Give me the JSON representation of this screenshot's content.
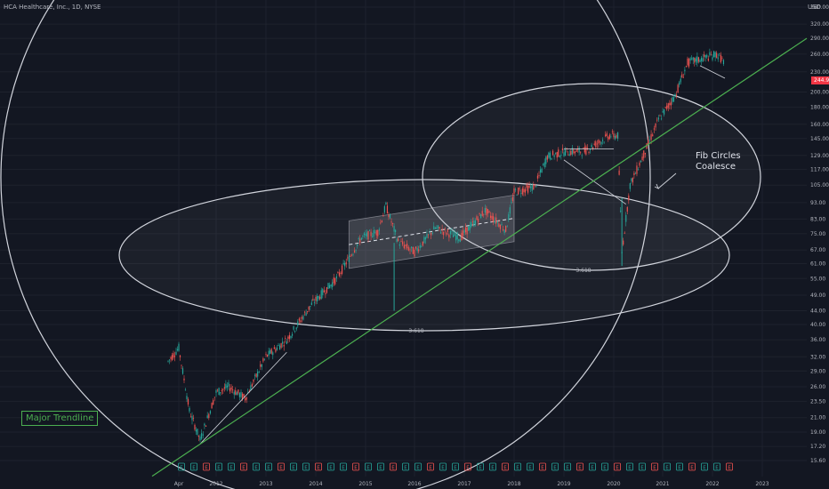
{
  "header": {
    "title": "HCA Healthcare, Inc., 1D, NYSE",
    "currency": "USD"
  },
  "annotations": {
    "trendline_label": "Major Trendline",
    "fib_note": "Fib Circles\nCoalesce",
    "fib_ratio_1": "3.618",
    "fib_ratio_2": "3.618"
  },
  "last_price": "244.90",
  "colors": {
    "background": "#131722",
    "up": "#26a69a",
    "down": "#ef5350",
    "trendline": "#4caf50",
    "circles": "#d1d4dc",
    "grid": "#1e222d",
    "axis_text": "#b2b5be"
  },
  "chart_data": {
    "type": "candlestick",
    "scale": "log",
    "title": "HCA Healthcare, Inc., 1D, NYSE",
    "y_ticks": [
      15.6,
      17.2,
      19.0,
      21.0,
      23.5,
      26.0,
      29.0,
      32.0,
      36.0,
      40.0,
      44.0,
      49.0,
      55.0,
      61.0,
      67.0,
      75.0,
      83.0,
      93.0,
      105.0,
      117.0,
      129.0,
      145.0,
      160.0,
      180.0,
      200.0,
      230.0,
      260.0,
      290.0,
      320.0,
      360.0
    ],
    "x_ticks": [
      "Apr",
      "2012",
      "2013",
      "2014",
      "2015",
      "2016",
      "2017",
      "2018",
      "2019",
      "2020",
      "2021",
      "2022",
      "2023"
    ],
    "price_path": [
      {
        "date": "2011-04",
        "close": 31
      },
      {
        "date": "2011-06",
        "close": 34
      },
      {
        "date": "2011-08",
        "close": 22
      },
      {
        "date": "2011-10",
        "close": 18
      },
      {
        "date": "2012-01",
        "close": 25
      },
      {
        "date": "2012-04",
        "close": 26
      },
      {
        "date": "2012-08",
        "close": 24
      },
      {
        "date": "2013-01",
        "close": 32
      },
      {
        "date": "2013-06",
        "close": 36
      },
      {
        "date": "2013-12",
        "close": 46
      },
      {
        "date": "2014-06",
        "close": 55
      },
      {
        "date": "2014-12",
        "close": 73
      },
      {
        "date": "2015-04",
        "close": 76
      },
      {
        "date": "2015-06",
        "close": 91
      },
      {
        "date": "2015-09",
        "close": 71
      },
      {
        "date": "2016-01",
        "close": 66
      },
      {
        "date": "2016-06",
        "close": 78
      },
      {
        "date": "2016-12",
        "close": 73
      },
      {
        "date": "2017-06",
        "close": 88
      },
      {
        "date": "2017-11",
        "close": 77
      },
      {
        "date": "2018-01",
        "close": 100
      },
      {
        "date": "2018-06",
        "close": 104
      },
      {
        "date": "2018-09",
        "close": 128
      },
      {
        "date": "2019-01",
        "close": 132
      },
      {
        "date": "2019-06",
        "close": 133
      },
      {
        "date": "2019-12",
        "close": 148
      },
      {
        "date": "2020-02",
        "close": 148
      },
      {
        "date": "2020-03",
        "close": 66
      },
      {
        "date": "2020-05",
        "close": 105
      },
      {
        "date": "2020-08",
        "close": 127
      },
      {
        "date": "2020-12",
        "close": 165
      },
      {
        "date": "2021-04",
        "close": 195
      },
      {
        "date": "2021-07",
        "close": 245
      },
      {
        "date": "2021-12",
        "close": 255
      },
      {
        "date": "2022-02",
        "close": 260
      },
      {
        "date": "2022-04",
        "close": 244.9
      }
    ],
    "trendline": [
      {
        "date": "2011-01",
        "price": 14.0
      },
      {
        "date": "2022-12",
        "price": 290.0
      }
    ],
    "regression_channel": {
      "start": "2014-09",
      "end": "2018-01",
      "base_low": 59,
      "base_high": 82,
      "end_low": 71,
      "end_high": 98
    },
    "volume_spikes": [
      {
        "date": "2015-08",
        "low": 44
      },
      {
        "date": "2020-03",
        "low": 60
      }
    ],
    "earnings_markers": [
      "E",
      "E",
      "E",
      "E",
      "E",
      "E",
      "E",
      "E",
      "E",
      "E",
      "E",
      "E",
      "E",
      "E",
      "E",
      "E",
      "E",
      "E",
      "E",
      "E",
      "E",
      "E",
      "E",
      "E",
      "E",
      "E",
      "E",
      "E",
      "E",
      "E",
      "E",
      "E",
      "E",
      "E",
      "E",
      "E",
      "E",
      "E",
      "E",
      "E",
      "E",
      "E",
      "E",
      "E",
      "E"
    ]
  }
}
